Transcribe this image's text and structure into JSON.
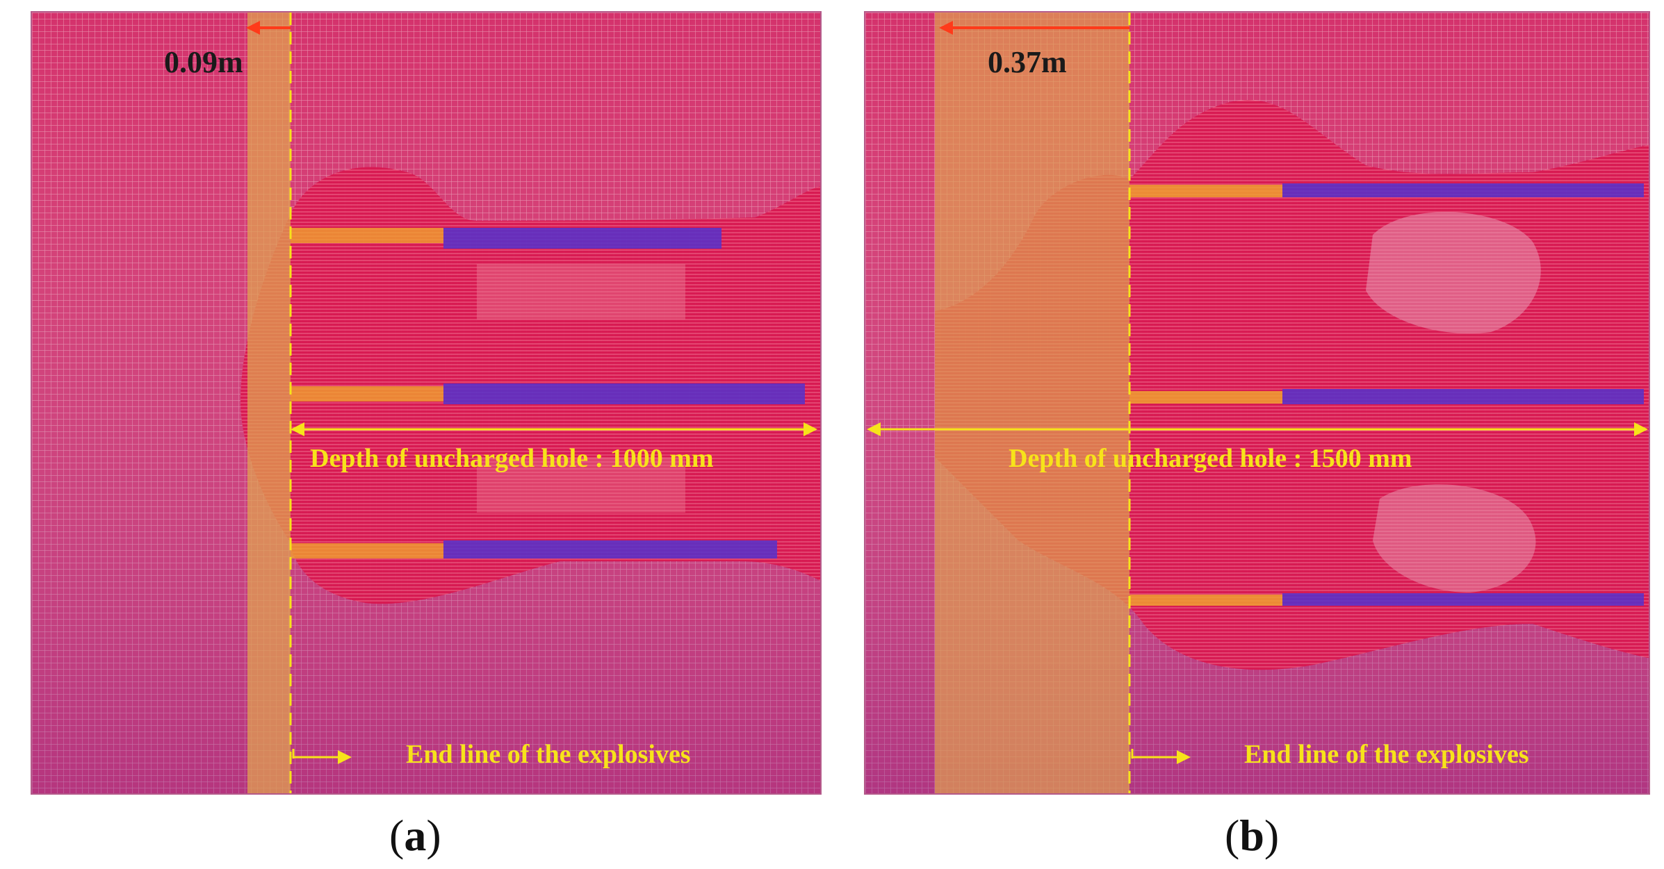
{
  "panels": [
    {
      "id": "a",
      "caption_letter": "a",
      "distance_label": "0.09m",
      "depth_label": "Depth of uncharged  hole :  1000 mm",
      "end_line_label": "End line of the explosives"
    },
    {
      "id": "b",
      "caption_letter": "b",
      "distance_label": "0.37m",
      "depth_label": "Depth of uncharged  hole :  1500 mm",
      "end_line_label": "End line of the explosives"
    }
  ],
  "colors": {
    "mesh": "#c81e5a",
    "damage_zone": "#d8a04a",
    "crack_zone": "#e0104a",
    "charge_blue": "#5533cc",
    "annotation_yellow": "#f7e31a",
    "arrow_red": "#ff3a1a"
  }
}
